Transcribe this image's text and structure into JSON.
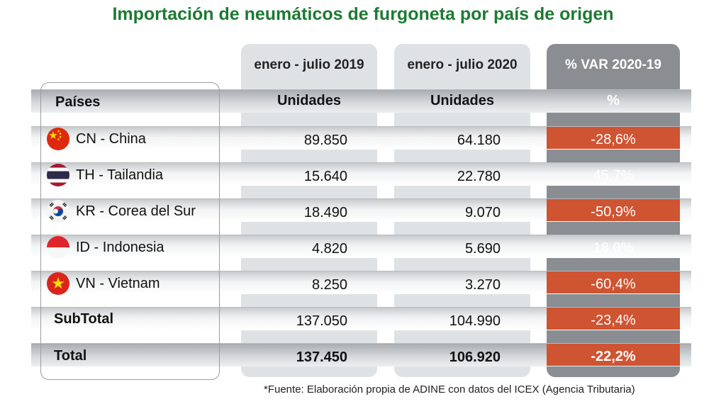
{
  "title": "Importación de neumáticos de furgoneta por país de origen",
  "columns": {
    "periods": [
      "enero - julio 2019",
      "enero - julio 2020",
      "% VAR 2020-19"
    ],
    "subheaders": [
      "Países",
      "Unidades",
      "Unidades",
      "%"
    ]
  },
  "rows": [
    {
      "label": "CN - China",
      "flag": "china-flag-icon",
      "v2019": "89.850",
      "v2020": "64.180",
      "var": "-28,6%"
    },
    {
      "label": "TH - Tailandia",
      "flag": "thailand-flag-icon",
      "v2019": "15.640",
      "v2020": "22.780",
      "var": "45,7%"
    },
    {
      "label": "KR - Corea del Sur",
      "flag": "south-korea-flag-icon",
      "v2019": "18.490",
      "v2020": "9.070",
      "var": "-50,9%"
    },
    {
      "label": "ID - Indonesia",
      "flag": "indonesia-flag-icon",
      "v2019": "4.820",
      "v2020": "5.690",
      "var": "18,0%"
    },
    {
      "label": "VN - Vietnam",
      "flag": "vietnam-flag-icon",
      "v2019": "8.250",
      "v2020": "3.270",
      "var": "-60,4%"
    }
  ],
  "subtotal": {
    "label": "SubTotal",
    "v2019": "137.050",
    "v2020": "104.990",
    "var": "-23,4%"
  },
  "total": {
    "label": "Total",
    "v2019": "137.450",
    "v2020": "106.920",
    "var": "-22,2%"
  },
  "colors": {
    "title": "#1d7a32",
    "negative": "#cf5432",
    "var_column": "#8a8d91"
  },
  "footnote": "*Fuente: Elaboración propia de ADINE con datos del ICEX (Agencia Tributaria)"
}
